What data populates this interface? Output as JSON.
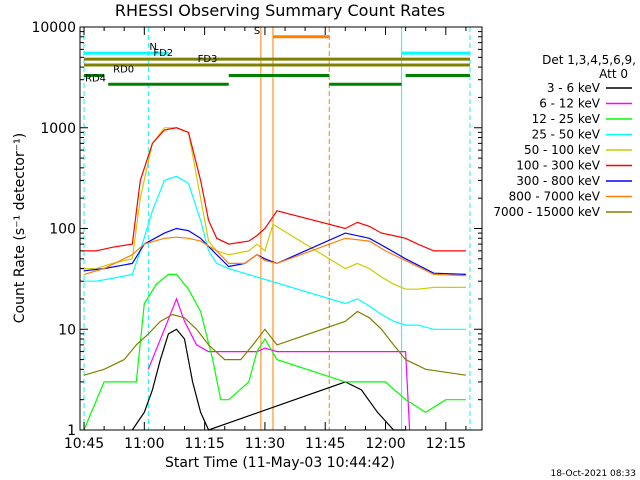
{
  "chart_data": {
    "type": "line",
    "title": "RHESSI Observing Summary Count Rates",
    "xlabel": "Start Time (11-May-03 10:44:42)",
    "ylabel": "Count Rate (s⁻¹ detector⁻¹)",
    "ylim": [
      1,
      10000
    ],
    "yscale": "log",
    "xlim": [
      "10:44",
      "12:24"
    ],
    "x_ticks": [
      "10:45",
      "11:00",
      "11:15",
      "11:30",
      "11:45",
      "12:00",
      "12:15"
    ],
    "y_ticks": [
      "1",
      "10",
      "100",
      "1000",
      "10000"
    ],
    "legend_title": [
      "Det 1,3,4,5,6,9,",
      "Att 0"
    ],
    "legend_position": "right",
    "timestamp": "18-Oct-2021 08:33",
    "series": [
      {
        "name": "3 - 6 keV",
        "color": "#000000",
        "points": [
          [
            "10:57",
            1
          ],
          [
            "11:00",
            1.5
          ],
          [
            "11:02",
            2.5
          ],
          [
            "11:04",
            5
          ],
          [
            "11:06",
            9
          ],
          [
            "11:08",
            10
          ],
          [
            "11:10",
            8
          ],
          [
            "11:12",
            3
          ],
          [
            "11:14",
            1.5
          ],
          [
            "11:16",
            1
          ],
          [
            "11:50",
            3
          ],
          [
            "11:54",
            2.5
          ],
          [
            "11:58",
            1.5
          ],
          [
            "12:02",
            1
          ],
          [
            "12:05",
            1
          ]
        ]
      },
      {
        "name": "6 - 12 keV",
        "color": "#ff00ff",
        "points": [
          [
            "11:01",
            4
          ],
          [
            "11:05",
            10
          ],
          [
            "11:08",
            20
          ],
          [
            "11:10",
            12
          ],
          [
            "11:13",
            7
          ],
          [
            "11:16",
            6
          ],
          [
            "11:20",
            6
          ],
          [
            "11:24",
            6
          ],
          [
            "11:28",
            6
          ],
          [
            "11:30",
            6.5
          ],
          [
            "11:33",
            6
          ],
          [
            "11:50",
            6
          ],
          [
            "11:55",
            6
          ],
          [
            "12:00",
            6
          ],
          [
            "12:05",
            6
          ],
          [
            "12:06",
            1
          ]
        ]
      },
      {
        "name": "12 - 25 keV",
        "color": "#00ff00",
        "points": [
          [
            "10:45",
            1
          ],
          [
            "10:50",
            3
          ],
          [
            "10:55",
            3
          ],
          [
            "10:58",
            3
          ],
          [
            "11:00",
            18
          ],
          [
            "11:03",
            28
          ],
          [
            "11:06",
            35
          ],
          [
            "11:08",
            35
          ],
          [
            "11:11",
            25
          ],
          [
            "11:14",
            15
          ],
          [
            "11:17",
            5
          ],
          [
            "11:19",
            2
          ],
          [
            "11:21",
            2
          ],
          [
            "11:26",
            3
          ],
          [
            "11:28",
            6
          ],
          [
            "11:30",
            8
          ],
          [
            "11:33",
            5
          ],
          [
            "11:50",
            3
          ],
          [
            "11:55",
            3
          ],
          [
            "12:00",
            3
          ],
          [
            "12:05",
            2
          ],
          [
            "12:10",
            1.5
          ],
          [
            "12:15",
            2
          ],
          [
            "12:20",
            2
          ]
        ]
      },
      {
        "name": "25 - 50 keV",
        "color": "#00ffff",
        "points": [
          [
            "10:45",
            30
          ],
          [
            "10:48",
            30
          ],
          [
            "10:52",
            32
          ],
          [
            "10:57",
            35
          ],
          [
            "10:59",
            60
          ],
          [
            "11:02",
            150
          ],
          [
            "11:05",
            300
          ],
          [
            "11:08",
            330
          ],
          [
            "11:11",
            280
          ],
          [
            "11:14",
            120
          ],
          [
            "11:16",
            60
          ],
          [
            "11:18",
            45
          ],
          [
            "11:21",
            40
          ],
          [
            "11:50",
            18
          ],
          [
            "11:53",
            20
          ],
          [
            "11:56",
            17
          ],
          [
            "11:59",
            14
          ],
          [
            "12:02",
            12
          ],
          [
            "12:05",
            11
          ],
          [
            "12:08",
            11
          ],
          [
            "12:12",
            10
          ],
          [
            "12:20",
            10
          ]
        ]
      },
      {
        "name": "50 - 100 keV",
        "color": "#cccc00",
        "points": [
          [
            "10:45",
            40
          ],
          [
            "10:48",
            40
          ],
          [
            "10:52",
            45
          ],
          [
            "10:57",
            50
          ],
          [
            "10:59",
            200
          ],
          [
            "11:02",
            700
          ],
          [
            "11:05",
            1000
          ],
          [
            "11:08",
            1000
          ],
          [
            "11:11",
            900
          ],
          [
            "11:14",
            200
          ],
          [
            "11:16",
            75
          ],
          [
            "11:18",
            60
          ],
          [
            "11:21",
            55
          ],
          [
            "11:26",
            60
          ],
          [
            "11:28",
            70
          ],
          [
            "11:30",
            60
          ],
          [
            "11:32",
            110
          ],
          [
            "11:50",
            40
          ],
          [
            "11:53",
            45
          ],
          [
            "11:56",
            40
          ],
          [
            "11:59",
            33
          ],
          [
            "12:02",
            28
          ],
          [
            "12:05",
            25
          ],
          [
            "12:08",
            25
          ],
          [
            "12:12",
            26
          ],
          [
            "12:20",
            26
          ]
        ]
      },
      {
        "name": "100 - 300 keV",
        "color": "#ff0000",
        "points": [
          [
            "10:45",
            60
          ],
          [
            "10:48",
            60
          ],
          [
            "10:52",
            65
          ],
          [
            "10:57",
            70
          ],
          [
            "10:59",
            300
          ],
          [
            "11:02",
            700
          ],
          [
            "11:05",
            950
          ],
          [
            "11:08",
            1000
          ],
          [
            "11:11",
            900
          ],
          [
            "11:14",
            300
          ],
          [
            "11:16",
            120
          ],
          [
            "11:18",
            80
          ],
          [
            "11:21",
            70
          ],
          [
            "11:26",
            75
          ],
          [
            "11:28",
            85
          ],
          [
            "11:30",
            100
          ],
          [
            "11:33",
            150
          ],
          [
            "11:50",
            100
          ],
          [
            "11:53",
            115
          ],
          [
            "11:56",
            105
          ],
          [
            "11:59",
            90
          ],
          [
            "12:02",
            85
          ],
          [
            "12:05",
            80
          ],
          [
            "12:08",
            70
          ],
          [
            "12:12",
            60
          ],
          [
            "12:20",
            60
          ]
        ]
      },
      {
        "name": "300 - 800 keV",
        "color": "#0000ff",
        "points": [
          [
            "10:45",
            38
          ],
          [
            "10:50",
            40
          ],
          [
            "10:57",
            45
          ],
          [
            "11:00",
            70
          ],
          [
            "11:05",
            90
          ],
          [
            "11:08",
            100
          ],
          [
            "11:11",
            95
          ],
          [
            "11:14",
            80
          ],
          [
            "11:18",
            55
          ],
          [
            "11:21",
            42
          ],
          [
            "11:25",
            45
          ],
          [
            "11:28",
            55
          ],
          [
            "11:30",
            50
          ],
          [
            "11:33",
            45
          ],
          [
            "11:50",
            90
          ],
          [
            "11:56",
            80
          ],
          [
            "12:00",
            65
          ],
          [
            "12:05",
            50
          ],
          [
            "12:12",
            36
          ],
          [
            "12:20",
            35
          ]
        ]
      },
      {
        "name": "800 - 7000 keV",
        "color": "#ff8000",
        "points": [
          [
            "10:45",
            35
          ],
          [
            "10:50",
            40
          ],
          [
            "10:57",
            55
          ],
          [
            "11:00",
            70
          ],
          [
            "11:05",
            80
          ],
          [
            "11:08",
            82
          ],
          [
            "11:11",
            80
          ],
          [
            "11:14",
            75
          ],
          [
            "11:18",
            60
          ],
          [
            "11:21",
            45
          ],
          [
            "11:25",
            45
          ],
          [
            "11:28",
            55
          ],
          [
            "11:30",
            48
          ],
          [
            "11:33",
            45
          ],
          [
            "11:50",
            80
          ],
          [
            "11:56",
            75
          ],
          [
            "12:00",
            60
          ],
          [
            "12:05",
            48
          ],
          [
            "12:12",
            35
          ],
          [
            "12:20",
            34
          ]
        ]
      },
      {
        "name": "7000 - 15000 keV",
        "color": "#808000",
        "points": [
          [
            "10:45",
            3.5
          ],
          [
            "10:50",
            4
          ],
          [
            "10:55",
            5
          ],
          [
            "10:58",
            7
          ],
          [
            "11:01",
            9
          ],
          [
            "11:04",
            12
          ],
          [
            "11:07",
            14
          ],
          [
            "11:10",
            13
          ],
          [
            "11:13",
            10
          ],
          [
            "11:16",
            7
          ],
          [
            "11:20",
            5
          ],
          [
            "11:24",
            5
          ],
          [
            "11:27",
            7
          ],
          [
            "11:30",
            10
          ],
          [
            "11:33",
            7
          ],
          [
            "11:50",
            12
          ],
          [
            "11:53",
            15
          ],
          [
            "11:56",
            13
          ],
          [
            "11:59",
            10
          ],
          [
            "12:02",
            7
          ],
          [
            "12:05",
            5
          ],
          [
            "12:10",
            4
          ],
          [
            "12:20",
            3.5
          ]
        ]
      }
    ],
    "vlines": [
      {
        "time": "10:45",
        "color": "#00ffff",
        "style": "dash"
      },
      {
        "time": "11:01",
        "color": "#00ffff",
        "style": "dash"
      },
      {
        "time": "12:04",
        "color": "#00ffff",
        "style": "solid"
      },
      {
        "time": "12:21",
        "color": "#00ffff",
        "style": "dash"
      },
      {
        "time": "11:29",
        "color": "#ff8000",
        "style": "solid"
      },
      {
        "time": "11:32",
        "color": "#ff8000",
        "style": "solid"
      },
      {
        "time": "11:46",
        "color": "#ff8000",
        "style": "dash"
      }
    ],
    "flag_bars": [
      {
        "label": "N",
        "color": "#00ffff",
        "y": 5500,
        "segments": [
          [
            "10:45",
            "11:01"
          ],
          [
            "11:01",
            "11:06"
          ],
          [
            "12:04",
            "12:21"
          ]
        ],
        "label_time": "11:01"
      },
      {
        "label": "S",
        "color": "#ff8000",
        "y": 8000,
        "segments": [
          [
            "11:32",
            "11:46"
          ]
        ],
        "label_time": "11:27"
      },
      {
        "label": "FD2",
        "color": "#808000",
        "y": 4800,
        "segments": [
          [
            "10:45",
            "12:21"
          ]
        ],
        "label_time": "11:02"
      },
      {
        "label": "FD3",
        "color": "#808000",
        "y": 4200,
        "segments": [
          [
            "10:45",
            "12:21"
          ]
        ],
        "label_time": "11:13"
      },
      {
        "label": "RD0",
        "color": "#008000",
        "y": 3300,
        "segments": [
          [
            "10:45",
            "10:50"
          ],
          [
            "11:21",
            "11:46"
          ],
          [
            "12:05",
            "12:21"
          ]
        ],
        "label_time": "10:52"
      },
      {
        "label": "RD4",
        "color": "#008000",
        "y": 2700,
        "segments": [
          [
            "10:51",
            "11:21"
          ],
          [
            "11:46",
            "12:04"
          ]
        ],
        "label_time": "10:45"
      }
    ]
  }
}
